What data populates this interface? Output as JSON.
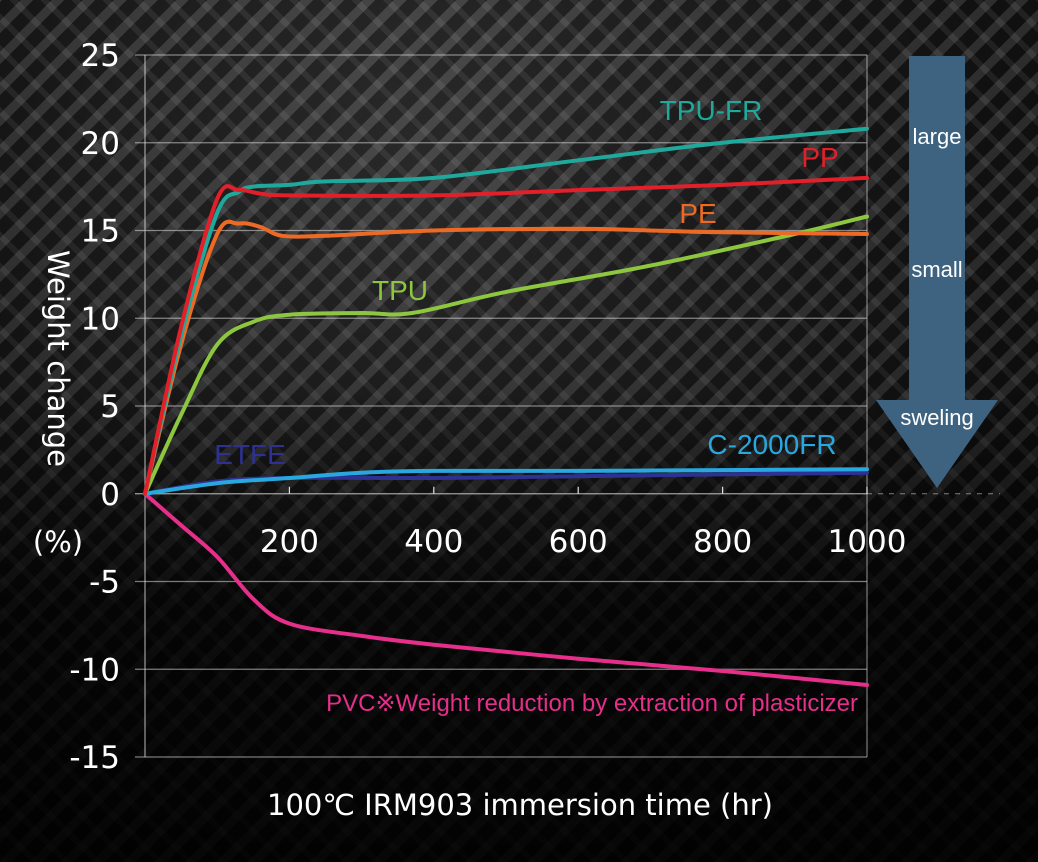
{
  "chart_data": {
    "type": "line",
    "title": "",
    "xlabel": "100℃ IRM903 immersion time (hr)",
    "ylabel": "Weight change",
    "ylabel_unit": "(%)",
    "xlim": [
      0,
      1000
    ],
    "ylim": [
      -15,
      25
    ],
    "x_ticks": [
      200,
      400,
      600,
      800,
      1000
    ],
    "y_ticks": [
      25,
      20,
      15,
      10,
      5,
      0,
      -5,
      -10,
      -15
    ],
    "grid": "horizontal",
    "series": [
      {
        "name": "TPU-FR",
        "color": "#1fa99c",
        "x": [
          0,
          50,
          100,
          130,
          150,
          200,
          250,
          400,
          600,
          800,
          1000
        ],
        "y": [
          0,
          9.0,
          16.0,
          17.2,
          17.5,
          17.6,
          17.8,
          18.0,
          19.0,
          20.0,
          20.8
        ]
      },
      {
        "name": "PP",
        "color": "#e3202a",
        "x": [
          0,
          50,
          100,
          130,
          160,
          200,
          400,
          600,
          800,
          1000
        ],
        "y": [
          0,
          9.5,
          16.8,
          17.3,
          17.1,
          17.0,
          17.0,
          17.3,
          17.6,
          18.0
        ]
      },
      {
        "name": "PE",
        "color": "#ec6a24",
        "x": [
          0,
          50,
          100,
          130,
          160,
          190,
          250,
          400,
          600,
          700,
          800,
          1000
        ],
        "y": [
          0,
          8.5,
          14.8,
          15.4,
          15.2,
          14.7,
          14.7,
          15.0,
          15.1,
          15.0,
          14.9,
          14.8
        ]
      },
      {
        "name": "TPU",
        "color": "#8dc63f",
        "x": [
          0,
          50,
          100,
          150,
          200,
          300,
          370,
          500,
          700,
          900,
          1000
        ],
        "y": [
          0,
          4.5,
          8.5,
          9.8,
          10.2,
          10.3,
          10.3,
          11.5,
          13.0,
          14.8,
          15.8
        ]
      },
      {
        "name": "C-2000FR",
        "color": "#29a8e0",
        "x": [
          0,
          100,
          200,
          300,
          400,
          600,
          800,
          1000
        ],
        "y": [
          0,
          0.6,
          0.9,
          1.2,
          1.3,
          1.3,
          1.35,
          1.4
        ]
      },
      {
        "name": "ETFE",
        "color": "#2e3192",
        "x": [
          0,
          100,
          200,
          400,
          600,
          800,
          1000
        ],
        "y": [
          0,
          0.7,
          0.9,
          0.9,
          1.0,
          1.1,
          1.2
        ]
      },
      {
        "name": "PVC",
        "color": "#e62e8b",
        "x": [
          0,
          50,
          100,
          150,
          200,
          300,
          400,
          600,
          800,
          1000
        ],
        "y": [
          0,
          -1.8,
          -3.6,
          -6.0,
          -7.4,
          -8.1,
          -8.6,
          -9.4,
          -10.1,
          -10.9
        ]
      }
    ],
    "annotations": [
      {
        "text": "TPU-FR",
        "series": "TPU-FR"
      },
      {
        "text": "PP",
        "series": "PP"
      },
      {
        "text": "PE",
        "series": "PE"
      },
      {
        "text": "TPU",
        "series": "TPU"
      },
      {
        "text": "ETFE",
        "series": "ETFE"
      },
      {
        "text": "C-2000FR",
        "series": "C-2000FR"
      },
      {
        "text": "PVC※Weight reduction by extraction of plasticizer",
        "series": "PVC"
      }
    ],
    "side_arrow": {
      "direction": "down",
      "color": "#3e6381",
      "labels": [
        "large",
        "small",
        "sweling"
      ]
    }
  }
}
